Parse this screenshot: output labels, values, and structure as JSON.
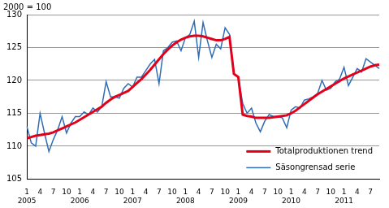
{
  "chart_data": {
    "type": "line",
    "ylabel": "2000 = 100",
    "categories": [
      [
        "1",
        "2005"
      ],
      null,
      null,
      "4",
      null,
      null,
      "7",
      null,
      null,
      "10",
      null,
      null,
      [
        "1",
        "2006"
      ],
      null,
      null,
      "4",
      null,
      null,
      "7",
      null,
      null,
      "10",
      null,
      null,
      [
        "1",
        "2007"
      ],
      null,
      null,
      "4",
      null,
      null,
      "7",
      null,
      null,
      "10",
      null,
      null,
      [
        "1",
        "2008"
      ],
      null,
      null,
      "4",
      null,
      null,
      "7",
      null,
      null,
      "10",
      null,
      null,
      [
        "1",
        "2009"
      ],
      null,
      null,
      "4",
      null,
      null,
      "7",
      null,
      null,
      "10",
      null,
      null,
      [
        "1",
        "2010"
      ],
      null,
      null,
      "4",
      null,
      null,
      "7",
      null,
      null,
      "10",
      null,
      null,
      [
        "1",
        "2011"
      ],
      null,
      null,
      "4",
      null,
      null,
      "7",
      null,
      null
    ],
    "series": [
      {
        "name": "Totalproduktionen trend",
        "color": "#e3001b",
        "values": [
          111.2,
          111.4,
          111.6,
          111.7,
          111.8,
          111.9,
          112.1,
          112.4,
          112.7,
          113.0,
          113.3,
          113.6,
          114.0,
          114.4,
          114.8,
          115.2,
          115.6,
          116.0,
          116.6,
          117.1,
          117.5,
          117.8,
          118.1,
          118.4,
          119.0,
          119.6,
          120.2,
          120.9,
          121.6,
          122.4,
          123.2,
          124.0,
          124.7,
          125.3,
          125.8,
          126.2,
          126.5,
          126.7,
          126.8,
          126.8,
          126.7,
          126.5,
          126.3,
          126.1,
          126.1,
          126.3,
          126.6,
          121.0,
          120.5,
          114.8,
          114.6,
          114.5,
          114.3,
          114.3,
          114.3,
          114.3,
          114.4,
          114.5,
          114.6,
          114.7,
          115.0,
          115.4,
          115.9,
          116.4,
          116.9,
          117.4,
          117.9,
          118.3,
          118.7,
          119.1,
          119.5,
          119.9,
          120.3,
          120.6,
          120.9,
          121.2,
          121.5,
          121.8,
          122.1,
          122.3,
          122.4
        ]
      },
      {
        "name": "Säsongrensad serie",
        "color": "#2f6db5",
        "values": [
          113.0,
          110.5,
          110.0,
          115.0,
          112.0,
          109.2,
          111.0,
          112.5,
          114.5,
          112.0,
          113.5,
          114.5,
          114.5,
          115.2,
          114.8,
          115.8,
          115.2,
          116.0,
          119.8,
          117.5,
          117.5,
          117.3,
          118.8,
          119.5,
          119.0,
          120.5,
          120.5,
          121.5,
          122.5,
          123.2,
          119.5,
          124.5,
          125.0,
          125.8,
          126.0,
          124.5,
          126.5,
          127.0,
          129.0,
          123.5,
          128.8,
          126.0,
          123.5,
          125.5,
          124.8,
          128.0,
          127.0,
          121.0,
          120.5,
          116.5,
          115.0,
          115.8,
          113.5,
          112.2,
          113.8,
          114.8,
          114.5,
          114.5,
          114.3,
          112.8,
          115.5,
          116.0,
          115.8,
          117.0,
          117.2,
          117.5,
          118.0,
          120.0,
          118.5,
          118.8,
          119.8,
          120.2,
          122.0,
          119.2,
          120.5,
          121.8,
          121.3,
          123.3,
          122.8,
          122.3,
          121.8
        ]
      }
    ],
    "ylim": [
      105,
      130
    ],
    "yticks": [
      105,
      110,
      115,
      120,
      125,
      130
    ],
    "grid": true,
    "legend": "lower right"
  }
}
